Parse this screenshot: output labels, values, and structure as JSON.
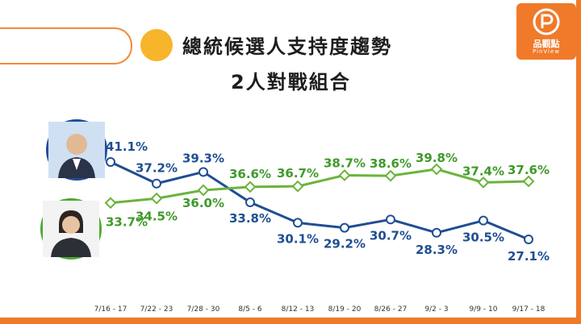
{
  "header": {
    "title_line1": "總統候選人支持度趨勢",
    "title_line2": "2人對戰組合"
  },
  "logo": {
    "name": "品觀點",
    "sub": "PinView"
  },
  "colors": {
    "accent_orange": "#f07a2a",
    "dot_yellow": "#f7b52c",
    "blue_series": "#1f4e93",
    "green_series": "#6ab43c",
    "green_label": "#3e9a2a"
  },
  "candidates": [
    {
      "avatar_icon": "candidate-portrait-icon",
      "ring_color": "#1f4e93"
    },
    {
      "avatar_icon": "candidate-portrait-icon",
      "ring_color": "#4ea833"
    }
  ],
  "chart_data": {
    "type": "line",
    "title": "總統候選人支持度趨勢",
    "subtitle": "2人對戰組合",
    "categories": [
      "7/16 - 17",
      "7/22 - 23",
      "7/28 - 30",
      "8/5 - 6",
      "8/12 - 13",
      "8/19 - 20",
      "8/26 - 27",
      "9/2 - 3",
      "9/9 - 10",
      "9/17 - 18"
    ],
    "series": [
      {
        "values": [
          41.1,
          37.2,
          39.3,
          33.8,
          30.1,
          29.2,
          30.7,
          28.3,
          30.5,
          27.1
        ],
        "labels": [
          "41.1%",
          "37.2%",
          "39.3%",
          "33.8%",
          "30.1%",
          "29.2%",
          "30.7%",
          "28.3%",
          "30.5%",
          "27.1%"
        ],
        "color": "#1f4e93",
        "marker": "circle"
      },
      {
        "values": [
          33.7,
          34.5,
          36.0,
          36.6,
          36.7,
          38.7,
          38.6,
          39.8,
          37.4,
          37.6
        ],
        "labels": [
          "33.7%",
          "34.5%",
          "36.0%",
          "36.6%",
          "36.7%",
          "38.7%",
          "38.6%",
          "39.8%",
          "37.4%",
          "37.6%"
        ],
        "color": "#6ab43c",
        "marker": "diamond"
      }
    ],
    "grid": false,
    "legend": "none"
  }
}
